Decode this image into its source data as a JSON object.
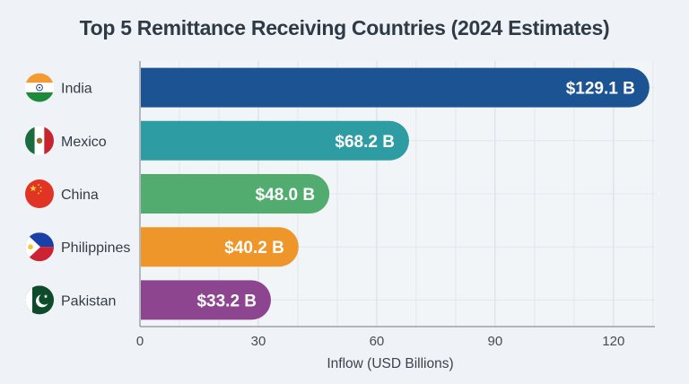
{
  "chart_data": {
    "type": "bar",
    "orientation": "horizontal",
    "title": "Top 5 Remittance Receiving Countries (2024 Estimates)",
    "xlabel": "Inflow (USD Billions)",
    "ylabel": "",
    "categories": [
      "India",
      "Mexico",
      "China",
      "Philippines",
      "Pakistan"
    ],
    "values": [
      129.1,
      68.2,
      48.0,
      40.2,
      33.2
    ],
    "value_labels": [
      "$129.1 B",
      "$68.2 B",
      "$48.0 B",
      "$40.2 B",
      "$33.2 B"
    ],
    "colors": [
      "#1c5393",
      "#2e9ca3",
      "#52ab6f",
      "#ef962a",
      "#8e4590"
    ],
    "flags": [
      "india-flag",
      "mexico-flag",
      "china-flag",
      "philippines-flag",
      "pakistan-flag"
    ],
    "xticks": [
      0,
      30,
      60,
      90,
      120
    ],
    "xtick_labels": [
      "0",
      "30",
      "60",
      "90",
      "120"
    ],
    "xlim": [
      0,
      130.5
    ],
    "grid": true,
    "legend": "none"
  }
}
